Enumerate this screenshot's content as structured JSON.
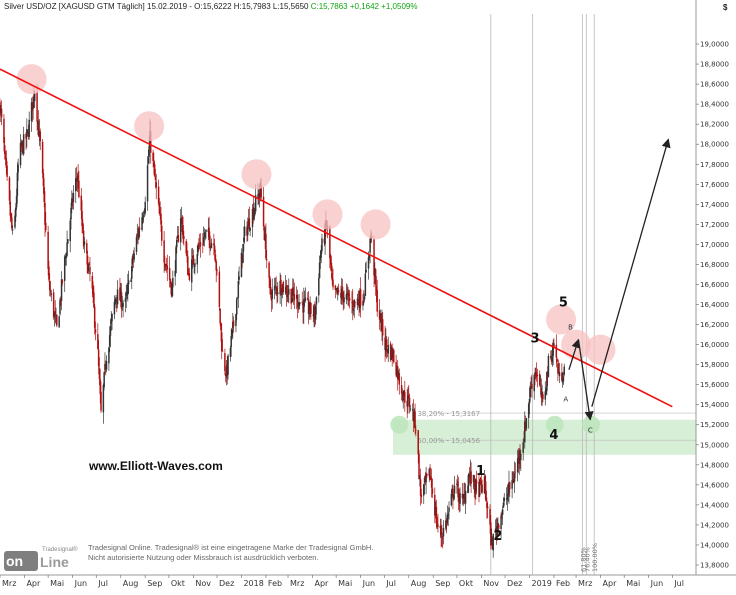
{
  "header": {
    "instrument": "Silver USD/OZ [XAGUSD GTM  Täglich] 15.02.2019",
    "ohl": "- O:15,6222 H:15,7983 L:15,5650",
    "last": "C:15,7863 +0,1642 +1,0509%"
  },
  "unit_symbol": "$",
  "watermark": "www.Elliott-Waves.com",
  "disclaimer": {
    "line1": "Tradesignal Online. Tradesignal® ist eine eingetragene Marke der Tradesignal GmbH.",
    "line2": "Nicht autorisierte Nutzung oder Missbrauch ist ausdrücklich verboten."
  },
  "logo": {
    "brand": "Tradesignal®",
    "word_a": "on",
    "word_b": "Line"
  },
  "colors": {
    "trendline": "#ee1111",
    "candle_up": "#333333",
    "candle_down": "#b01010",
    "support_zone": "#cfeccf",
    "touch_marker": "#f7c2c2",
    "last_value": "#12a312",
    "arrow": "#222222"
  },
  "chart_data": {
    "type": "candlestick",
    "x_axis": {
      "type": "date",
      "range": [
        "2017-03-01",
        "2019-07-31"
      ],
      "tick_labels": [
        {
          "date": "2017-03-01",
          "label": "Mrz"
        },
        {
          "date": "2017-04-01",
          "label": "Apr"
        },
        {
          "date": "2017-05-01",
          "label": "Mai"
        },
        {
          "date": "2017-06-01",
          "label": "Jun"
        },
        {
          "date": "2017-07-01",
          "label": "Jul"
        },
        {
          "date": "2017-08-01",
          "label": "Aug"
        },
        {
          "date": "2017-09-01",
          "label": "Sep"
        },
        {
          "date": "2017-10-01",
          "label": "Okt"
        },
        {
          "date": "2017-11-01",
          "label": "Nov"
        },
        {
          "date": "2017-12-01",
          "label": "Dez"
        },
        {
          "date": "2018-01-01",
          "label": "2018"
        },
        {
          "date": "2018-02-01",
          "label": "Feb"
        },
        {
          "date": "2018-03-01",
          "label": "Mrz"
        },
        {
          "date": "2018-04-01",
          "label": "Apr"
        },
        {
          "date": "2018-05-01",
          "label": "Mai"
        },
        {
          "date": "2018-06-01",
          "label": "Jun"
        },
        {
          "date": "2018-07-01",
          "label": "Jul"
        },
        {
          "date": "2018-08-01",
          "label": "Aug"
        },
        {
          "date": "2018-09-01",
          "label": "Sep"
        },
        {
          "date": "2018-10-01",
          "label": "Okt"
        },
        {
          "date": "2018-11-01",
          "label": "Nov"
        },
        {
          "date": "2018-12-01",
          "label": "Dez"
        },
        {
          "date": "2019-01-01",
          "label": "2019"
        },
        {
          "date": "2019-02-01",
          "label": "Feb"
        },
        {
          "date": "2019-03-01",
          "label": "Mrz"
        },
        {
          "date": "2019-04-01",
          "label": "Apr"
        },
        {
          "date": "2019-05-01",
          "label": "Mai"
        },
        {
          "date": "2019-06-01",
          "label": "Jun"
        },
        {
          "date": "2019-07-01",
          "label": "Jul"
        }
      ]
    },
    "y_axis": {
      "range": [
        13.7,
        19.3
      ],
      "position": "right",
      "ticks": [
        {
          "value": 13.8,
          "label": "13,8000"
        },
        {
          "value": 14.0,
          "label": "14,0000"
        },
        {
          "value": 14.2,
          "label": "14,2000"
        },
        {
          "value": 14.4,
          "label": "14,4000"
        },
        {
          "value": 14.6,
          "label": "14,6000"
        },
        {
          "value": 14.8,
          "label": "14,8000"
        },
        {
          "value": 15.0,
          "label": "15,0000"
        },
        {
          "value": 15.2,
          "label": "15,2000"
        },
        {
          "value": 15.4,
          "label": "15,4000"
        },
        {
          "value": 15.6,
          "label": "15,6000"
        },
        {
          "value": 15.8,
          "label": "15,8000"
        },
        {
          "value": 16.0,
          "label": "16,0000"
        },
        {
          "value": 16.2,
          "label": "16,2000"
        },
        {
          "value": 16.4,
          "label": "16,4000"
        },
        {
          "value": 16.6,
          "label": "16,6000"
        },
        {
          "value": 16.8,
          "label": "16,8000"
        },
        {
          "value": 17.0,
          "label": "17,0000"
        },
        {
          "value": 17.2,
          "label": "17,2000"
        },
        {
          "value": 17.4,
          "label": "17,4000"
        },
        {
          "value": 17.6,
          "label": "17,6000"
        },
        {
          "value": 17.8,
          "label": "17,8000"
        },
        {
          "value": 18.0,
          "label": "18,0000"
        },
        {
          "value": 18.2,
          "label": "18,2000"
        },
        {
          "value": 18.4,
          "label": "18,4000"
        },
        {
          "value": 18.6,
          "label": "18,6000"
        },
        {
          "value": 18.8,
          "label": "18,8000"
        },
        {
          "value": 19.0,
          "label": "19,0000"
        }
      ]
    },
    "price_path": [
      {
        "date": "2017-03-01",
        "value": 18.4
      },
      {
        "date": "2017-03-10",
        "value": 17.6
      },
      {
        "date": "2017-03-18",
        "value": 17.0
      },
      {
        "date": "2017-03-25",
        "value": 17.9
      },
      {
        "date": "2017-04-05",
        "value": 18.1
      },
      {
        "date": "2017-04-14",
        "value": 18.55
      },
      {
        "date": "2017-04-22",
        "value": 17.9
      },
      {
        "date": "2017-05-02",
        "value": 16.6
      },
      {
        "date": "2017-05-12",
        "value": 16.15
      },
      {
        "date": "2017-05-20",
        "value": 16.7
      },
      {
        "date": "2017-06-02",
        "value": 17.5
      },
      {
        "date": "2017-06-07",
        "value": 17.7
      },
      {
        "date": "2017-06-15",
        "value": 17.0
      },
      {
        "date": "2017-06-25",
        "value": 16.6
      },
      {
        "date": "2017-07-03",
        "value": 15.9
      },
      {
        "date": "2017-07-07",
        "value": 15.3
      },
      {
        "date": "2017-07-14",
        "value": 15.9
      },
      {
        "date": "2017-07-26",
        "value": 16.5
      },
      {
        "date": "2017-08-07",
        "value": 16.4
      },
      {
        "date": "2017-08-20",
        "value": 17.0
      },
      {
        "date": "2017-08-31",
        "value": 17.4
      },
      {
        "date": "2017-09-07",
        "value": 18.05
      },
      {
        "date": "2017-09-14",
        "value": 17.6
      },
      {
        "date": "2017-09-25",
        "value": 16.9
      },
      {
        "date": "2017-10-05",
        "value": 16.55
      },
      {
        "date": "2017-10-16",
        "value": 17.3
      },
      {
        "date": "2017-10-26",
        "value": 16.7
      },
      {
        "date": "2017-11-06",
        "value": 16.95
      },
      {
        "date": "2017-11-17",
        "value": 17.1
      },
      {
        "date": "2017-11-28",
        "value": 17.0
      },
      {
        "date": "2017-12-08",
        "value": 15.9
      },
      {
        "date": "2017-12-13",
        "value": 15.7
      },
      {
        "date": "2017-12-22",
        "value": 16.2
      },
      {
        "date": "2018-01-05",
        "value": 17.1
      },
      {
        "date": "2018-01-14",
        "value": 17.3
      },
      {
        "date": "2018-01-25",
        "value": 17.55
      },
      {
        "date": "2018-02-06",
        "value": 16.5
      },
      {
        "date": "2018-02-20",
        "value": 16.6
      },
      {
        "date": "2018-03-05",
        "value": 16.5
      },
      {
        "date": "2018-03-20",
        "value": 16.4
      },
      {
        "date": "2018-04-04",
        "value": 16.3
      },
      {
        "date": "2018-04-11",
        "value": 16.9
      },
      {
        "date": "2018-04-19",
        "value": 17.2
      },
      {
        "date": "2018-04-27",
        "value": 16.5
      },
      {
        "date": "2018-05-10",
        "value": 16.5
      },
      {
        "date": "2018-05-22",
        "value": 16.4
      },
      {
        "date": "2018-06-05",
        "value": 16.5
      },
      {
        "date": "2018-06-14",
        "value": 17.1
      },
      {
        "date": "2018-06-22",
        "value": 16.4
      },
      {
        "date": "2018-07-02",
        "value": 16.0
      },
      {
        "date": "2018-07-12",
        "value": 15.9
      },
      {
        "date": "2018-07-25",
        "value": 15.5
      },
      {
        "date": "2018-08-03",
        "value": 15.4
      },
      {
        "date": "2018-08-10",
        "value": 15.2
      },
      {
        "date": "2018-08-16",
        "value": 14.5
      },
      {
        "date": "2018-08-28",
        "value": 14.7
      },
      {
        "date": "2018-09-06",
        "value": 14.2
      },
      {
        "date": "2018-09-12",
        "value": 14.1
      },
      {
        "date": "2018-09-20",
        "value": 14.3
      },
      {
        "date": "2018-09-28",
        "value": 14.6
      },
      {
        "date": "2018-10-08",
        "value": 14.4
      },
      {
        "date": "2018-10-16",
        "value": 14.7
      },
      {
        "date": "2018-10-26",
        "value": 14.55
      },
      {
        "date": "2018-11-05",
        "value": 14.6
      },
      {
        "date": "2018-11-14",
        "value": 14.0
      },
      {
        "date": "2018-11-23",
        "value": 14.25
      },
      {
        "date": "2018-12-04",
        "value": 14.5
      },
      {
        "date": "2018-12-13",
        "value": 14.7
      },
      {
        "date": "2018-12-25",
        "value": 15.1
      },
      {
        "date": "2019-01-03",
        "value": 15.6
      },
      {
        "date": "2019-01-09",
        "value": 15.75
      },
      {
        "date": "2019-01-18",
        "value": 15.4
      },
      {
        "date": "2019-01-25",
        "value": 15.8
      },
      {
        "date": "2019-02-01",
        "value": 16.0
      },
      {
        "date": "2019-02-08",
        "value": 15.65
      },
      {
        "date": "2019-02-15",
        "value": 15.79
      }
    ],
    "trendline": {
      "start": {
        "date": "2017-03-01",
        "value": 18.75
      },
      "end": {
        "date": "2019-07-01",
        "value": 15.38
      }
    },
    "touch_points": [
      {
        "date": "2017-04-10",
        "value": 18.65
      },
      {
        "date": "2017-09-06",
        "value": 18.18
      },
      {
        "date": "2018-01-20",
        "value": 17.7
      },
      {
        "date": "2018-04-20",
        "value": 17.3
      },
      {
        "date": "2018-06-20",
        "value": 17.2
      },
      {
        "date": "2019-02-10",
        "value": 16.25
      },
      {
        "date": "2019-03-01",
        "value": 16.0
      },
      {
        "date": "2019-04-01",
        "value": 15.95
      }
    ],
    "support_zone": {
      "from_date": "2018-07-12",
      "to_date": "2019-07-31",
      "low": 14.9,
      "high": 15.25
    },
    "support_markers": [
      {
        "date": "2018-07-20",
        "value": 15.2
      },
      {
        "date": "2019-02-02",
        "value": 15.2
      },
      {
        "date": "2019-03-20",
        "value": 15.2
      }
    ],
    "fib_levels": [
      {
        "label": "38,20% - 15,3167",
        "value": 15.3167
      },
      {
        "label": "50,00% - 15,0456",
        "value": 15.0456
      }
    ],
    "vertical_lines": [
      {
        "date": "2018-11-13",
        "label": ""
      },
      {
        "date": "2019-01-05",
        "label": ""
      },
      {
        "date": "2019-03-09",
        "label": "61,80%"
      },
      {
        "date": "2019-03-14",
        "label": "76,40%"
      },
      {
        "date": "2019-03-24",
        "label": "100,00%"
      }
    ],
    "wave_labels": [
      {
        "label": "5",
        "date": "2019-02-13",
        "value": 16.38,
        "size": "large"
      },
      {
        "label": "3",
        "date": "2019-01-08",
        "value": 16.02,
        "size": "large"
      },
      {
        "label": "4",
        "date": "2019-02-01",
        "value": 15.06,
        "size": "large"
      },
      {
        "label": "1",
        "date": "2018-10-31",
        "value": 14.7,
        "size": "large"
      },
      {
        "label": "2",
        "date": "2018-11-22",
        "value": 14.05,
        "size": "large"
      },
      {
        "label": "B",
        "date": "2019-02-22",
        "value": 16.15,
        "size": "small"
      },
      {
        "label": "A",
        "date": "2019-02-16",
        "value": 15.43,
        "size": "small"
      },
      {
        "label": "C",
        "date": "2019-03-19",
        "value": 15.12,
        "size": "small"
      }
    ],
    "projection_arrows": [
      {
        "from": {
          "date": "2019-02-20",
          "value": 15.75
        },
        "to": {
          "date": "2019-03-04",
          "value": 16.05
        }
      },
      {
        "from": {
          "date": "2019-03-04",
          "value": 16.05
        },
        "to": {
          "date": "2019-03-19",
          "value": 15.25
        }
      },
      {
        "from": {
          "date": "2019-03-21",
          "value": 15.38
        },
        "to": {
          "date": "2019-06-26",
          "value": 18.05
        }
      }
    ]
  }
}
